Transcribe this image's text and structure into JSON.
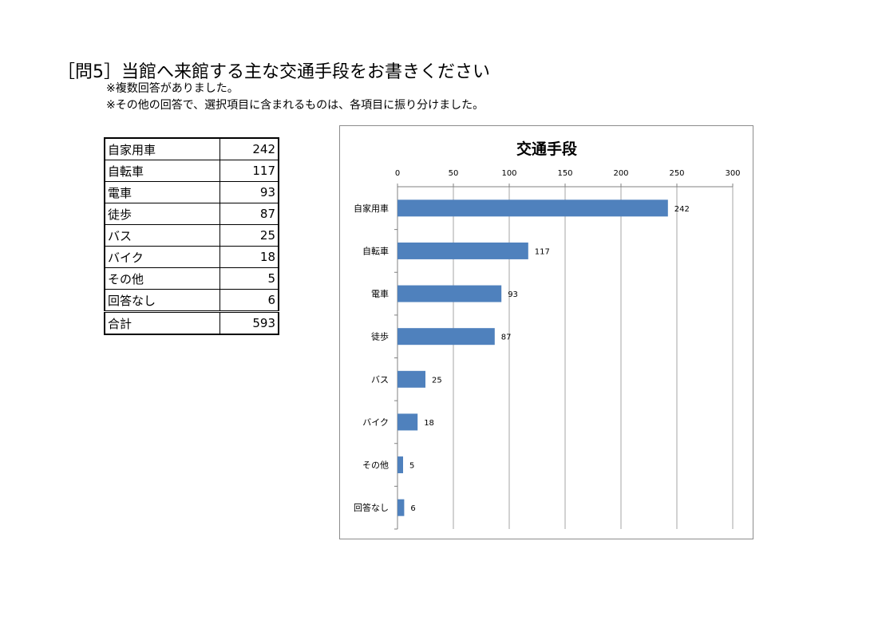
{
  "question": {
    "title": "［問5］当館へ来館する主な交通手段をお書きください",
    "note1": "※複数回答がありました。",
    "note2": "※その他の回答で、選択項目に含まれるものは、各項目に振り分けました。"
  },
  "table": {
    "rows": [
      {
        "label": "自家用車",
        "value": "242"
      },
      {
        "label": "自転車",
        "value": "117"
      },
      {
        "label": "電車",
        "value": "93"
      },
      {
        "label": "徒歩",
        "value": "87"
      },
      {
        "label": "バス",
        "value": "25"
      },
      {
        "label": "バイク",
        "value": "18"
      },
      {
        "label": "その他",
        "value": "5"
      },
      {
        "label": "回答なし",
        "value": "6"
      }
    ],
    "total": {
      "label": "合計",
      "value": "593"
    }
  },
  "chart_data": {
    "type": "bar",
    "orientation": "horizontal",
    "title": "交通手段",
    "categories": [
      "自家用車",
      "自転車",
      "電車",
      "徒歩",
      "バス",
      "バイク",
      "その他",
      "回答なし"
    ],
    "values": [
      242,
      117,
      93,
      87,
      25,
      18,
      5,
      6
    ],
    "xlim": [
      0,
      300
    ],
    "xticks": [
      0,
      50,
      100,
      150,
      200,
      250,
      300
    ],
    "axis_position": "top",
    "grid": true,
    "data_labels": true,
    "bar_color": "#4f81bd",
    "grid_color": "#a6a6a6"
  }
}
